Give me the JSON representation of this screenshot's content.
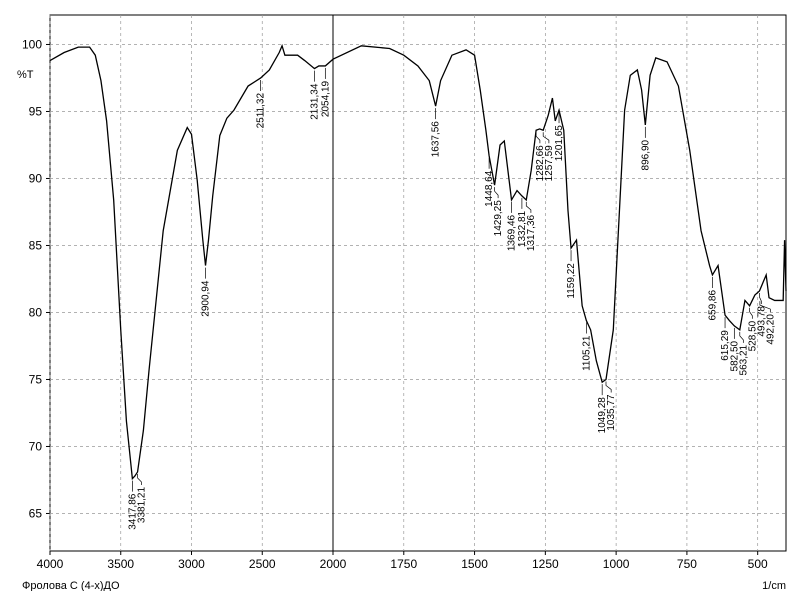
{
  "chart_data": {
    "type": "line",
    "y_label": "%T",
    "x_label": "1/cm",
    "footer": "Фролова С (4-х)ДО",
    "color": "#000000",
    "grid": true,
    "xlim": [
      4000,
      400
    ],
    "xbreak": 2000,
    "ylim": [
      62.2,
      102.2
    ],
    "xticks": [
      4000,
      3500,
      3000,
      2500,
      2000,
      1750,
      1500,
      1250,
      1000,
      750,
      500
    ],
    "yticks": [
      65,
      70,
      75,
      80,
      85,
      90,
      95,
      100
    ],
    "x": [
      4000,
      3900,
      3800,
      3720,
      3680,
      3640,
      3600,
      3550,
      3500,
      3460,
      3417.86,
      3400,
      3381.21,
      3340,
      3300,
      3200,
      3100,
      3030,
      3000,
      2960,
      2920,
      2900.94,
      2880,
      2850,
      2800,
      2750,
      2700,
      2600,
      2511,
      2450,
      2380,
      2360,
      2340,
      2250,
      2200,
      2131,
      2100,
      2054,
      2000,
      1900,
      1800,
      1750,
      1700,
      1660,
      1637.56,
      1620,
      1580,
      1530,
      1500,
      1480,
      1460,
      1448.64,
      1429.25,
      1410,
      1395,
      1369.46,
      1350,
      1332.81,
      1317.36,
      1300,
      1282.66,
      1270,
      1257.59,
      1240,
      1225,
      1215,
      1201.65,
      1185,
      1170,
      1159.22,
      1140,
      1120,
      1105.21,
      1090,
      1070,
      1049.28,
      1035.77,
      1010,
      990,
      970,
      950,
      925,
      910,
      896.9,
      880,
      860,
      820,
      780,
      740,
      700,
      670,
      659.86,
      640,
      615.29,
      600,
      582.5,
      563.21,
      545,
      528.5,
      510,
      493.78,
      480,
      470,
      460,
      440,
      420,
      410,
      405,
      400
    ],
    "values": [
      98.8,
      99.4,
      99.8,
      99.8,
      99.2,
      97.3,
      94.3,
      88.4,
      78.7,
      71.9,
      67.6,
      67.8,
      68.1,
      71.2,
      75.7,
      86.1,
      92.1,
      93.8,
      93.3,
      89.9,
      85.4,
      83.5,
      85.4,
      88.7,
      93.2,
      94.5,
      95.1,
      96.9,
      97.5,
      98.1,
      99.4,
      99.9,
      99.2,
      99.2,
      98.8,
      98.2,
      98.4,
      98.4,
      98.9,
      99.9,
      99.7,
      99.2,
      98.4,
      97.3,
      95.4,
      97.3,
      99.2,
      99.6,
      99.2,
      96.6,
      93.6,
      91.7,
      89.5,
      92.5,
      92.8,
      88.4,
      89.1,
      88.7,
      88.4,
      90.6,
      93.6,
      93.7,
      93.6,
      94.7,
      96.0,
      94.3,
      95.1,
      93.6,
      87.6,
      84.8,
      85.4,
      80.5,
      79.4,
      78.7,
      76.4,
      74.8,
      75.0,
      78.7,
      86.9,
      95.1,
      97.7,
      98.1,
      96.6,
      94.0,
      97.7,
      99.0,
      98.7,
      96.9,
      92.1,
      86.1,
      83.5,
      82.8,
      83.5,
      79.8,
      79.4,
      79.0,
      78.7,
      80.9,
      80.5,
      81.3,
      81.6,
      82.3,
      82.8,
      81.1,
      80.9,
      80.9,
      80.9,
      85.4,
      81.6
    ],
    "peaks": [
      {
        "x": 3417.86,
        "label": "3417,86",
        "y": 67.6
      },
      {
        "x": 3381.21,
        "label": "3381,21",
        "y": 68.1
      },
      {
        "x": 2900.94,
        "label": "2900,94",
        "y": 83.5
      },
      {
        "x": 2511.32,
        "label": "2511,32",
        "y": 97.5
      },
      {
        "x": 2131.34,
        "label": "2131,34",
        "y": 98.2
      },
      {
        "x": 2054.19,
        "label": "2054,19",
        "y": 98.4
      },
      {
        "x": 1637.56,
        "label": "1637,56",
        "y": 95.4
      },
      {
        "x": 1448.64,
        "label": "1448,64",
        "y": 91.7
      },
      {
        "x": 1429.25,
        "label": "1429,25",
        "y": 89.5
      },
      {
        "x": 1369.46,
        "label": "1369,46",
        "y": 88.4
      },
      {
        "x": 1332.81,
        "label": "1332,81",
        "y": 88.7
      },
      {
        "x": 1317.36,
        "label": "1317,36",
        "y": 88.4
      },
      {
        "x": 1282.66,
        "label": "1282,66",
        "y": 93.6
      },
      {
        "x": 1257.59,
        "label": "1257,59",
        "y": 93.6
      },
      {
        "x": 1201.65,
        "label": "1201,65",
        "y": 95.1
      },
      {
        "x": 1159.22,
        "label": "1159,22",
        "y": 84.8
      },
      {
        "x": 1105.21,
        "label": "1105,21",
        "y": 79.4
      },
      {
        "x": 1049.28,
        "label": "1049,28",
        "y": 74.8
      },
      {
        "x": 1035.77,
        "label": "1035,77",
        "y": 75.0
      },
      {
        "x": 896.9,
        "label": "896,90",
        "y": 94.0
      },
      {
        "x": 659.86,
        "label": "659,86",
        "y": 82.8
      },
      {
        "x": 615.29,
        "label": "615,29",
        "y": 79.8
      },
      {
        "x": 582.5,
        "label": "582,50",
        "y": 79.0
      },
      {
        "x": 563.21,
        "label": "563,21",
        "y": 78.7
      },
      {
        "x": 528.5,
        "label": "528,50",
        "y": 80.5
      },
      {
        "x": 493.78,
        "label": "493,78",
        "y": 81.6
      },
      {
        "x": 492.2,
        "label": "492,20",
        "y": 81.0
      }
    ]
  }
}
